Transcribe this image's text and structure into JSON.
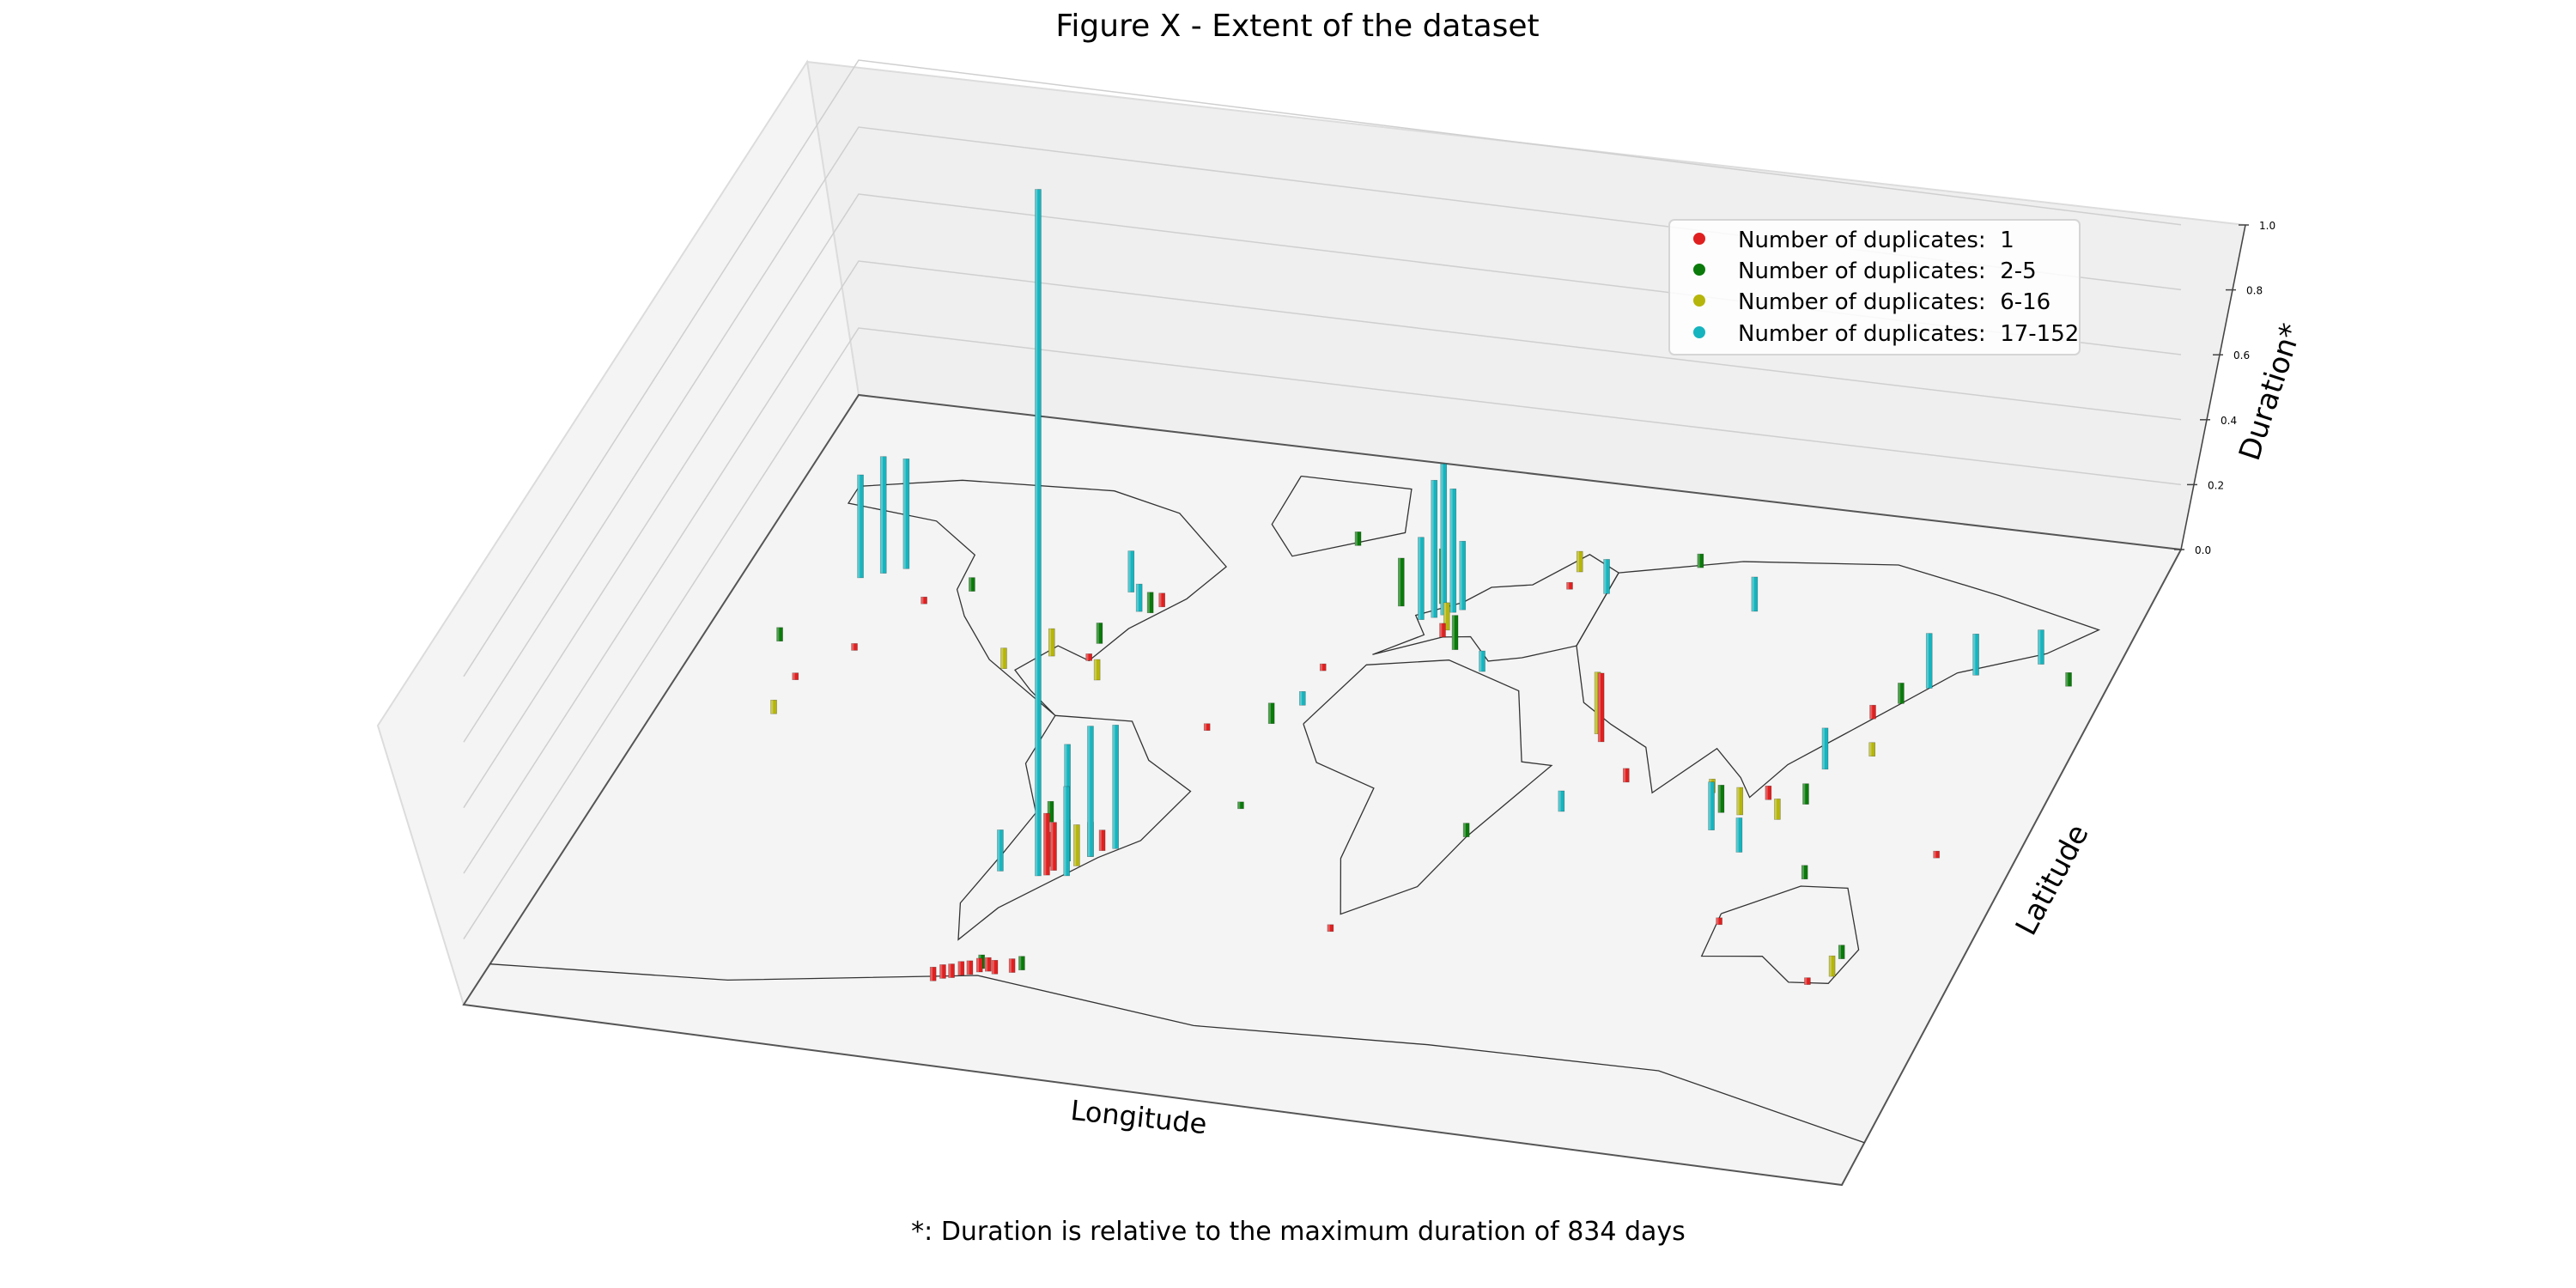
{
  "chart_data": {
    "type": "scatter",
    "projection": "3d-bars",
    "title": "Figure X - Extent of the dataset",
    "xlabel": "Longitude",
    "ylabel": "Latitude",
    "zlabel": "Duration*",
    "footnote": "*: Duration is relative to the maximum duration of 834 days",
    "zlim": [
      0.0,
      1.0
    ],
    "zticks": [
      "0.0",
      "0.2",
      "0.4",
      "0.6",
      "0.8",
      "1.0"
    ],
    "grid": true,
    "legend_position": "top-right",
    "series": [
      {
        "name": "Number of duplicates:  1",
        "color": "#e02020",
        "points": [
          {
            "lon": -58.0,
            "lat": -34.5,
            "z": 0.09
          },
          {
            "lon": -57.0,
            "lat": -33.0,
            "z": 0.07
          },
          {
            "lon": -58.0,
            "lat": -32.0,
            "z": 0.05
          },
          {
            "lon": -48.0,
            "lat": -26.0,
            "z": 0.03
          },
          {
            "lon": -60.0,
            "lat": -63.0,
            "z": 0.02
          },
          {
            "lon": -62.0,
            "lat": -64.0,
            "z": 0.02
          },
          {
            "lon": -58.0,
            "lat": -62.5,
            "z": 0.02
          },
          {
            "lon": -64.0,
            "lat": -64.5,
            "z": 0.02
          },
          {
            "lon": -56.0,
            "lat": -63.0,
            "z": 0.02
          },
          {
            "lon": -66.0,
            "lat": -65.5,
            "z": 0.02
          },
          {
            "lon": -68.0,
            "lat": -66.0,
            "z": 0.02
          },
          {
            "lon": -52.0,
            "lat": -62.0,
            "z": 0.02
          },
          {
            "lon": -70.0,
            "lat": -67.0,
            "z": 0.02
          },
          {
            "lon": -140.0,
            "lat": 20.0,
            "z": 0.01
          },
          {
            "lon": -150.0,
            "lat": 10.0,
            "z": 0.01
          },
          {
            "lon": -130.0,
            "lat": 35.0,
            "z": 0.01
          },
          {
            "lon": -80.0,
            "lat": 25.0,
            "z": 0.01
          },
          {
            "lon": -70.0,
            "lat": 42.0,
            "z": 0.02
          },
          {
            "lon": -20.0,
            "lat": 30.0,
            "z": 0.01
          },
          {
            "lon": 60.0,
            "lat": 20.0,
            "z": 0.1
          },
          {
            "lon": 72.0,
            "lat": 10.0,
            "z": 0.02
          },
          {
            "lon": 110.0,
            "lat": 10.0,
            "z": 0.02
          },
          {
            "lon": 115.0,
            "lat": -25.0,
            "z": 0.01
          },
          {
            "lon": 145.0,
            "lat": -38.0,
            "z": 0.01
          },
          {
            "lon": 160.0,
            "lat": 0.0,
            "z": 0.01
          },
          {
            "lon": 5.0,
            "lat": 43.0,
            "z": 0.02
          },
          {
            "lon": 20.0,
            "lat": -40.0,
            "z": 0.01
          },
          {
            "lon": -40.0,
            "lat": 10.0,
            "z": 0.01
          },
          {
            "lon": 30.0,
            "lat": 60.0,
            "z": 0.01
          },
          {
            "lon": 125.0,
            "lat": 35.0,
            "z": 0.02
          }
        ]
      },
      {
        "name": "Number of duplicates:  2-5",
        "color": "#0a7a0a",
        "points": [
          {
            "lon": -55.0,
            "lat": -30.0,
            "z": 0.06
          },
          {
            "lon": -50.0,
            "lat": -28.0,
            "z": 0.05
          },
          {
            "lon": -65.0,
            "lat": -20.0,
            "z": 0.03
          },
          {
            "lon": -80.0,
            "lat": 30.0,
            "z": 0.03
          },
          {
            "lon": -72.0,
            "lat": 40.0,
            "z": 0.03
          },
          {
            "lon": -10.0,
            "lat": 50.0,
            "z": 0.07
          },
          {
            "lon": 0.0,
            "lat": 52.0,
            "z": 0.08
          },
          {
            "lon": -30.0,
            "lat": 65.0,
            "z": 0.02
          },
          {
            "lon": -60.0,
            "lat": -62.0,
            "z": 0.02
          },
          {
            "lon": -50.0,
            "lat": -61.0,
            "z": 0.02
          },
          {
            "lon": 10.0,
            "lat": 40.0,
            "z": 0.05
          },
          {
            "lon": 100.0,
            "lat": 5.0,
            "z": 0.04
          },
          {
            "lon": 120.0,
            "lat": 10.0,
            "z": 0.03
          },
          {
            "lon": 130.0,
            "lat": -10.0,
            "z": 0.02
          },
          {
            "lon": 150.0,
            "lat": -30.0,
            "z": 0.02
          },
          {
            "lon": -120.0,
            "lat": 40.0,
            "z": 0.02
          },
          {
            "lon": -160.0,
            "lat": 20.0,
            "z": 0.02
          },
          {
            "lon": 40.0,
            "lat": -10.0,
            "z": 0.02
          },
          {
            "lon": 170.0,
            "lat": 50.0,
            "z": 0.02
          },
          {
            "lon": 60.0,
            "lat": 70.0,
            "z": 0.02
          },
          {
            "lon": 130.0,
            "lat": 40.0,
            "z": 0.03
          },
          {
            "lon": -20.0,
            "lat": -10.0,
            "z": 0.01
          },
          {
            "lon": -25.0,
            "lat": 14.0,
            "z": 0.03
          }
        ]
      },
      {
        "name": "Number of duplicates:  6-16",
        "color": "#b5b50c",
        "points": [
          {
            "lon": -52.0,
            "lat": -31.0,
            "z": 0.06
          },
          {
            "lon": -90.0,
            "lat": 25.0,
            "z": 0.04
          },
          {
            "lon": -75.0,
            "lat": 20.0,
            "z": 0.03
          },
          {
            "lon": 58.0,
            "lat": 22.0,
            "z": 0.09
          },
          {
            "lon": 105.0,
            "lat": 5.0,
            "z": 0.04
          },
          {
            "lon": 115.0,
            "lat": 5.0,
            "z": 0.03
          },
          {
            "lon": 5.0,
            "lat": 45.0,
            "z": 0.04
          },
          {
            "lon": -100.0,
            "lat": 20.0,
            "z": 0.03
          },
          {
            "lon": 150.0,
            "lat": -35.0,
            "z": 0.03
          },
          {
            "lon": -150.0,
            "lat": 0.0,
            "z": 0.02
          },
          {
            "lon": 30.0,
            "lat": 65.0,
            "z": 0.03
          },
          {
            "lon": 95.0,
            "lat": 10.0,
            "z": 0.02
          },
          {
            "lon": 130.0,
            "lat": 25.0,
            "z": 0.02
          }
        ]
      },
      {
        "name": "Number of duplicates:  17-152",
        "color": "#16b4be",
        "points": [
          {
            "lon": -60.0,
            "lat": -35.0,
            "z": 1.0
          },
          {
            "lon": -150.0,
            "lat": 40.0,
            "z": 0.15
          },
          {
            "lon": -145.0,
            "lat": 42.0,
            "z": 0.17
          },
          {
            "lon": -140.0,
            "lat": 44.0,
            "z": 0.16
          },
          {
            "lon": -55.0,
            "lat": -30.0,
            "z": 0.17
          },
          {
            "lon": -50.0,
            "lat": -28.0,
            "z": 0.19
          },
          {
            "lon": -45.0,
            "lat": -25.0,
            "z": 0.18
          },
          {
            "lon": -53.0,
            "lat": -34.0,
            "z": 0.13
          },
          {
            "lon": -70.0,
            "lat": -35.0,
            "z": 0.06
          },
          {
            "lon": 0.0,
            "lat": 48.0,
            "z": 0.2
          },
          {
            "lon": 2.0,
            "lat": 49.0,
            "z": 0.22
          },
          {
            "lon": 4.0,
            "lat": 50.0,
            "z": 0.18
          },
          {
            "lon": -3.0,
            "lat": 47.0,
            "z": 0.12
          },
          {
            "lon": 6.0,
            "lat": 51.0,
            "z": 0.1
          },
          {
            "lon": 100.0,
            "lat": 0.0,
            "z": 0.07
          },
          {
            "lon": 110.0,
            "lat": -5.0,
            "z": 0.05
          },
          {
            "lon": 120.0,
            "lat": 20.0,
            "z": 0.06
          },
          {
            "lon": 135.0,
            "lat": 45.0,
            "z": 0.08
          },
          {
            "lon": 145.0,
            "lat": 50.0,
            "z": 0.06
          },
          {
            "lon": 160.0,
            "lat": 55.0,
            "z": 0.05
          },
          {
            "lon": -80.0,
            "lat": 45.0,
            "z": 0.06
          },
          {
            "lon": -75.0,
            "lat": 40.0,
            "z": 0.04
          },
          {
            "lon": 40.0,
            "lat": 60.0,
            "z": 0.05
          },
          {
            "lon": 80.0,
            "lat": 60.0,
            "z": 0.05
          },
          {
            "lon": 20.0,
            "lat": 35.0,
            "z": 0.03
          },
          {
            "lon": -20.0,
            "lat": 20.0,
            "z": 0.02
          },
          {
            "lon": 60.0,
            "lat": 0.0,
            "z": 0.03
          }
        ]
      }
    ]
  }
}
